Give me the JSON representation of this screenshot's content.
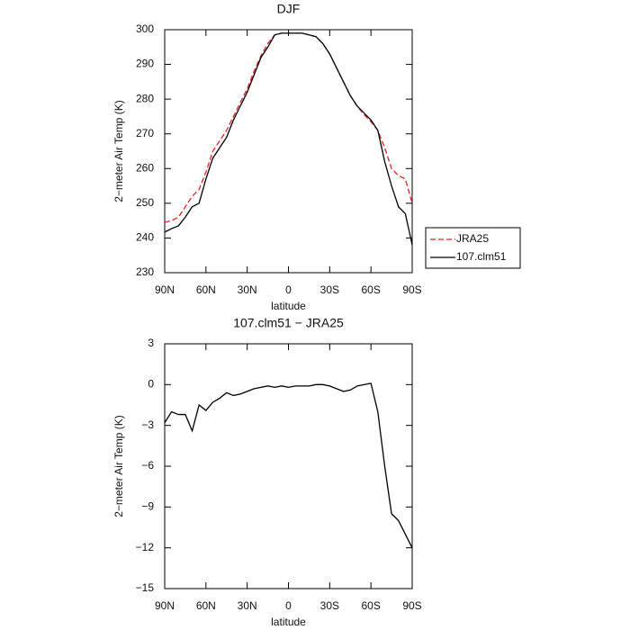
{
  "chart_data": [
    {
      "type": "line",
      "title": "DJF",
      "xlabel": "latitude",
      "ylabel": "2−meter Air Temp (K)",
      "x": [
        90,
        85,
        80,
        75,
        70,
        65,
        60,
        55,
        50,
        45,
        40,
        35,
        30,
        25,
        20,
        15,
        10,
        5,
        0,
        -5,
        -10,
        -15,
        -20,
        -25,
        -30,
        -35,
        -40,
        -45,
        -50,
        -55,
        -60,
        -65,
        -70,
        -75,
        -80,
        -85,
        -90
      ],
      "xlim": [
        90,
        -90
      ],
      "xticks": [
        {
          "value": 90,
          "label": "90N"
        },
        {
          "value": 60,
          "label": "60N"
        },
        {
          "value": 30,
          "label": "30N"
        },
        0,
        {
          "value": -30,
          "label": "30S"
        },
        {
          "value": -60,
          "label": "60S"
        },
        {
          "value": -90,
          "label": "90S"
        }
      ],
      "ylim": [
        230,
        300
      ],
      "yticks": [
        230,
        240,
        250,
        260,
        270,
        280,
        290,
        300
      ],
      "legend": "outside-right",
      "series": [
        {
          "name": "JRA25",
          "color": "#e8231f",
          "linestyle": "dashed",
          "values": [
            244.5,
            245,
            246,
            249,
            252,
            254,
            259,
            265,
            268,
            271,
            275,
            279,
            283,
            288,
            292.5,
            296,
            298.5,
            299,
            299,
            299,
            299,
            298.5,
            298,
            296,
            293,
            289,
            285,
            281,
            278,
            275.5,
            273.5,
            271,
            266,
            260,
            258,
            257,
            250
          ]
        },
        {
          "name": "107.clm51",
          "color": "#000000",
          "linestyle": "solid",
          "values": [
            241.7,
            242.7,
            243.5,
            246,
            249,
            250,
            257,
            263,
            266,
            269,
            274,
            278,
            282,
            287,
            292,
            295,
            298.5,
            299,
            299,
            299,
            299,
            298.5,
            298,
            296,
            293,
            289,
            285,
            281,
            278,
            276,
            274,
            271,
            262,
            255,
            249,
            247,
            238
          ]
        }
      ]
    },
    {
      "type": "line",
      "title": "107.clm51  −  JRA25",
      "xlabel": "latitude",
      "ylabel": "2−meter Air Temp (K)",
      "x": [
        90,
        85,
        80,
        75,
        70,
        65,
        60,
        55,
        50,
        45,
        40,
        35,
        30,
        25,
        20,
        15,
        10,
        5,
        0,
        -5,
        -10,
        -15,
        -20,
        -25,
        -30,
        -35,
        -40,
        -45,
        -50,
        -55,
        -60,
        -65,
        -70,
        -75,
        -80,
        -85,
        -90
      ],
      "xlim": [
        90,
        -90
      ],
      "xticks": [
        {
          "value": 90,
          "label": "90N"
        },
        {
          "value": 60,
          "label": "60N"
        },
        {
          "value": 30,
          "label": "30N"
        },
        0,
        {
          "value": -30,
          "label": "30S"
        },
        {
          "value": -60,
          "label": "60S"
        },
        {
          "value": -90,
          "label": "90S"
        }
      ],
      "ylim": [
        -15,
        3
      ],
      "yticks": [
        {
          "value": -15,
          "label": "−15"
        },
        {
          "value": -12,
          "label": "−12"
        },
        {
          "value": -9,
          "label": "−9"
        },
        {
          "value": -6,
          "label": "−6"
        },
        {
          "value": -3,
          "label": "−3"
        },
        0,
        3
      ],
      "series": [
        {
          "color": "#000000",
          "linestyle": "solid",
          "values": [
            -2.8,
            -2.0,
            -2.2,
            -2.2,
            -3.4,
            -1.5,
            -1.9,
            -1.3,
            -1.0,
            -0.6,
            -0.8,
            -0.7,
            -0.5,
            -0.3,
            -0.2,
            -0.1,
            -0.2,
            -0.1,
            -0.2,
            -0.1,
            -0.1,
            -0.1,
            0,
            0,
            -0.1,
            -0.3,
            -0.5,
            -0.4,
            -0.1,
            0,
            0.1,
            -2,
            -6,
            -9.5,
            -10,
            -11,
            -12
          ]
        }
      ]
    }
  ]
}
